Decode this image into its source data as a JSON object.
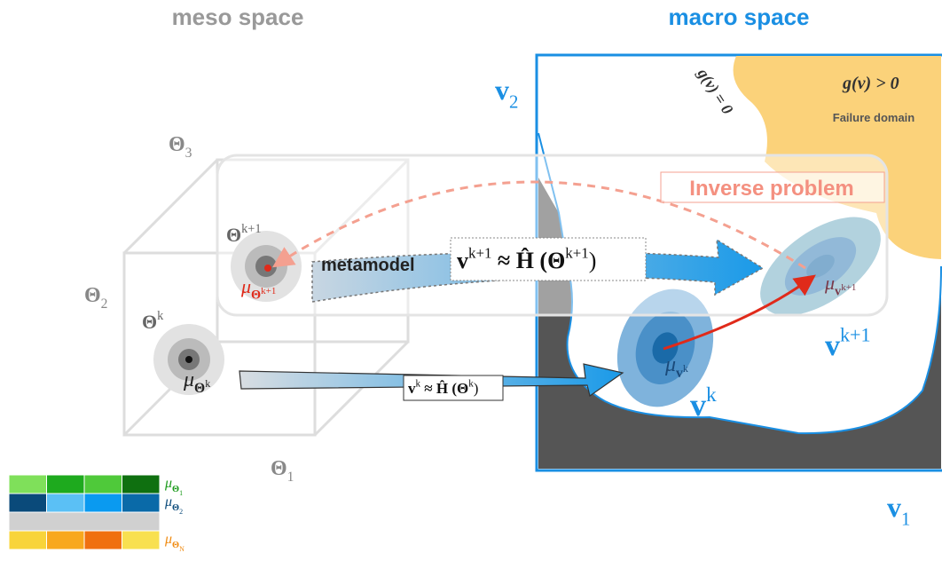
{
  "header": {
    "meso": "meso space",
    "macro": "macro space"
  },
  "macro": {
    "v2": [
      {
        "text": "v"
      },
      {
        "sub": "2"
      }
    ],
    "v1": [
      {
        "text": "v"
      },
      {
        "sub": "1"
      }
    ],
    "g_pos": [
      {
        "text": "g(v) > 0"
      }
    ],
    "g_zero": [
      {
        "text": "g(v) = 0"
      }
    ],
    "failure": "Failure domain",
    "inverse": "Inverse problem",
    "vk": [
      {
        "text": "v"
      },
      {
        "sup": "k"
      }
    ],
    "vk1": [
      {
        "text": "v"
      },
      {
        "sup": "k+1"
      }
    ],
    "mu_vk": [
      {
        "text": "μ"
      },
      {
        "sub": "v"
      },
      {
        "subsup": "k"
      }
    ],
    "mu_vk1": [
      {
        "text": "μ"
      },
      {
        "sub": "v"
      },
      {
        "subsup": "k+1"
      }
    ]
  },
  "meso": {
    "theta3": [
      {
        "text": "Θ"
      },
      {
        "sub": "3"
      }
    ],
    "theta2": [
      {
        "text": "Θ"
      },
      {
        "sub": "2"
      }
    ],
    "theta1": [
      {
        "text": "Θ"
      },
      {
        "sub": "1"
      }
    ],
    "thetak": [
      {
        "text": "Θ"
      },
      {
        "sup": "k"
      }
    ],
    "thetak1": [
      {
        "text": "Θ"
      },
      {
        "sup": "k+1"
      }
    ],
    "mu_thetak": [
      {
        "text": "μ"
      },
      {
        "sub": "Θ"
      },
      {
        "subsup": "k"
      }
    ],
    "mu_thetak1": [
      {
        "text": "μ"
      },
      {
        "sub": "Θ"
      },
      {
        "subsup": "k+1"
      }
    ]
  },
  "mapping": {
    "metamodel": "metamodel",
    "eq_k1": [
      {
        "text": "v"
      },
      {
        "sup": "k+1"
      },
      {
        "text": " ≈ Ĥ (Θ"
      },
      {
        "sup": "k+1"
      },
      {
        "text": ")"
      }
    ],
    "eq_k": [
      {
        "text": "v"
      },
      {
        "sup": "k"
      },
      {
        "text": " ≈ Ĥ (Θ"
      },
      {
        "sup": "k"
      },
      {
        "text": ")"
      }
    ]
  },
  "legend": {
    "rows": [
      {
        "label": [
          {
            "text": "μ"
          },
          {
            "sub": "Θ"
          },
          {
            "subsub": "1"
          }
        ],
        "color": "#1a9a1a",
        "colors": [
          "#7fe05a",
          "#1eaa1e",
          "#4fc93a",
          "#0f7010"
        ]
      },
      {
        "label": [
          {
            "text": "μ"
          },
          {
            "sub": "Θ"
          },
          {
            "subsub": "2"
          }
        ],
        "color": "#0a4a7a",
        "colors": [
          "#0a4a7a",
          "#5bc0f5",
          "#0a9af0",
          "#0a6aa8"
        ]
      },
      {
        "colors": [
          "#d0d0d0"
        ]
      },
      {
        "label": [
          {
            "text": "μ"
          },
          {
            "sub": "Θ"
          },
          {
            "subsub": "N"
          }
        ],
        "color": "#f08a10",
        "colors": [
          "#f8d43a",
          "#f8a81e",
          "#f07010",
          "#f8e050"
        ]
      }
    ]
  }
}
